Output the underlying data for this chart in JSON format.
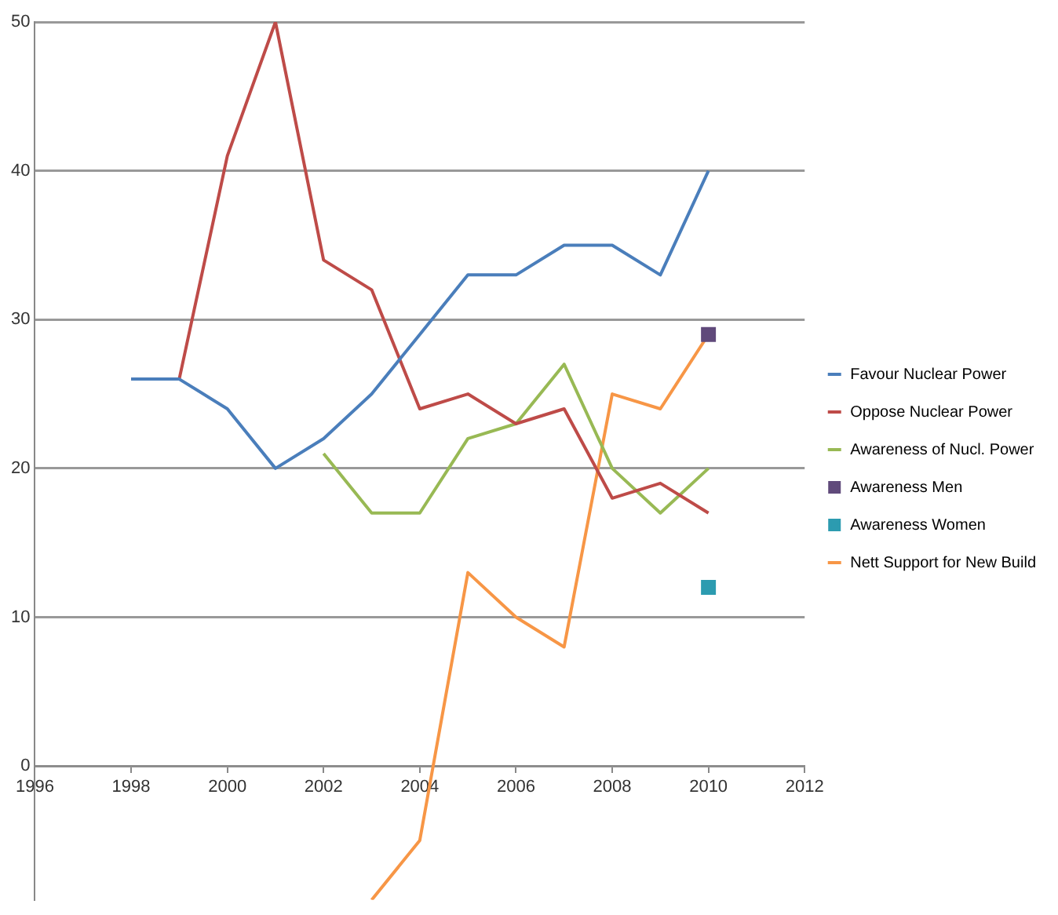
{
  "chart_data": {
    "type": "line",
    "xlim": [
      1996,
      2012
    ],
    "xticks": [
      1996,
      1998,
      2000,
      2002,
      2004,
      2006,
      2008,
      2010,
      2012
    ],
    "ylim": [
      -9,
      50
    ],
    "yticks": [
      0,
      10,
      20,
      30,
      40,
      50
    ],
    "grid": "y",
    "legend": "right",
    "series": [
      {
        "name": "Favour Nuclear Power",
        "type": "line",
        "marker": "none",
        "color": "#4a7ebb",
        "x": [
          1998,
          1999,
          2000,
          2001,
          2002,
          2003,
          2004,
          2005,
          2006,
          2007,
          2008,
          2009,
          2010
        ],
        "values": [
          26,
          26,
          24,
          20,
          22,
          25,
          29,
          33,
          33,
          35,
          35,
          33,
          40
        ]
      },
      {
        "name": "Oppose Nuclear Power",
        "type": "line",
        "marker": "none",
        "color": "#be4b48",
        "x": [
          1998,
          1999,
          2000,
          2001,
          2002,
          2003,
          2004,
          2005,
          2006,
          2007,
          2008,
          2009,
          2010
        ],
        "values": [
          26,
          26,
          41,
          50,
          34,
          32,
          24,
          25,
          23,
          24,
          18,
          19,
          17
        ]
      },
      {
        "name": "Awareness of Nucl. Power",
        "type": "line",
        "marker": "none",
        "color": "#98b954",
        "x": [
          2002,
          2003,
          2004,
          2005,
          2006,
          2007,
          2008,
          2009,
          2010
        ],
        "values": [
          21,
          17,
          17,
          22,
          23,
          27,
          20,
          17,
          20
        ]
      },
      {
        "name": "Awareness Men",
        "type": "scatter",
        "marker": "square",
        "color": "#604a7b",
        "x": [
          2010
        ],
        "values": [
          29
        ]
      },
      {
        "name": "Awareness Women",
        "type": "scatter",
        "marker": "square",
        "color": "#2c9bb0",
        "x": [
          2010
        ],
        "values": [
          12
        ]
      },
      {
        "name": "Nett Support for New Build",
        "type": "line",
        "marker": "none",
        "color": "#f79646",
        "x": [
          2003,
          2004,
          2005,
          2006,
          2007,
          2008,
          2009,
          2010
        ],
        "values": [
          -9,
          -5,
          13,
          10,
          8,
          25,
          24,
          29
        ]
      }
    ]
  }
}
